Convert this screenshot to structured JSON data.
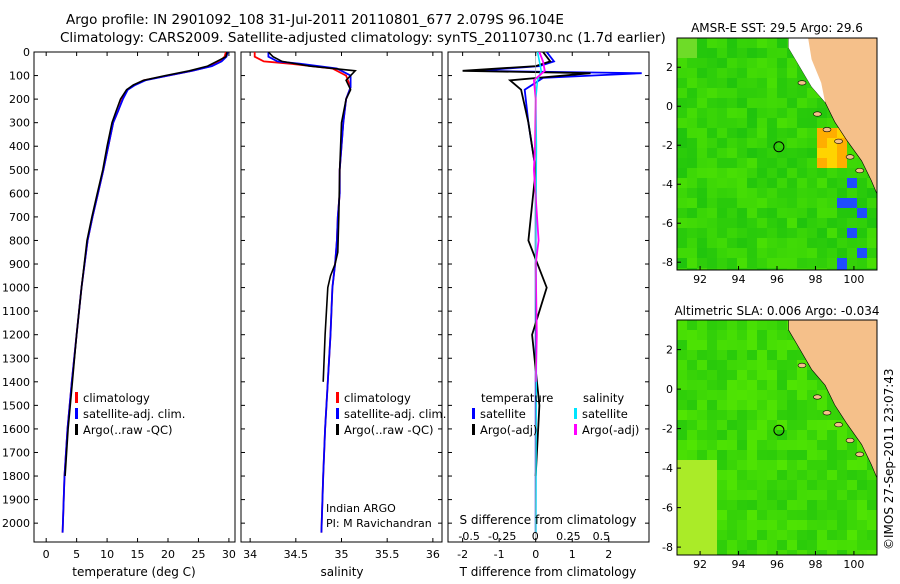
{
  "header": {
    "line1": "Argo profile: IN 2901092_108 31-Jul-2011 20110801_677 2.079S 96.104E",
    "line2": "Climatology: CARS2009. Satellite-adjusted climatology: synTS_20110730.nc (1.7d earlier)"
  },
  "side_stamp": "©IMOS 27-Sep-2011 23:07:43",
  "colors": {
    "climatology": "#ff0000",
    "satellite": "#0000ff",
    "argo": "#000000",
    "cyan": "#00e5ff",
    "magenta": "#ff00ff",
    "land": "#f5c08a"
  },
  "chart_data": [
    {
      "type": "line",
      "xlabel": "temperature (deg C)",
      "ylabel": "",
      "xlim": [
        -2,
        31
      ],
      "ylim": [
        2080,
        0
      ],
      "xticks": [
        0,
        5,
        10,
        15,
        20,
        25,
        30
      ],
      "yticks": [
        0,
        100,
        200,
        300,
        400,
        500,
        600,
        700,
        800,
        900,
        1000,
        1100,
        1200,
        1300,
        1400,
        1500,
        1600,
        1700,
        1800,
        1900,
        2000
      ],
      "legend": [
        {
          "label": "climatology",
          "color": "#ff0000"
        },
        {
          "label": "satellite-adj. clim.",
          "color": "#0000ff"
        },
        {
          "label": "Argo(..raw -QC)",
          "color": "#000000"
        }
      ],
      "series": [
        {
          "name": "climatology",
          "color": "#ff0000",
          "x": [
            29.5,
            29.3,
            28.5,
            27.0,
            24.0,
            20.0,
            16.0,
            14.5,
            13.3,
            12.5,
            11.8,
            11.0,
            10.2,
            9.4,
            8.5,
            7.6,
            6.8,
            5.8,
            5.0,
            4.2,
            3.5,
            3.0,
            2.7
          ],
          "y": [
            0,
            20,
            40,
            60,
            80,
            100,
            120,
            140,
            160,
            200,
            250,
            300,
            400,
            500,
            600,
            700,
            800,
            1000,
            1200,
            1400,
            1600,
            1800,
            2040
          ]
        },
        {
          "name": "satellite-adj. clim.",
          "color": "#0000ff",
          "x": [
            29.8,
            29.6,
            28.8,
            27.2,
            24.0,
            20.0,
            16.3,
            14.6,
            13.4,
            12.6,
            11.8,
            11.0,
            10.2,
            9.4,
            8.5,
            7.6,
            6.8,
            5.8,
            5.0,
            4.2,
            3.5,
            3.0,
            2.7
          ],
          "y": [
            0,
            20,
            40,
            60,
            80,
            100,
            120,
            140,
            160,
            200,
            250,
            300,
            400,
            500,
            600,
            700,
            800,
            1000,
            1200,
            1400,
            1600,
            1800,
            2040
          ]
        },
        {
          "name": "Argo(..raw -QC)",
          "color": "#000000",
          "x": [
            29.7,
            29.5,
            28.0,
            26.5,
            23.5,
            19.5,
            16.0,
            14.3,
            13.2,
            12.2,
            11.5,
            10.8,
            10.0,
            9.3,
            8.4,
            7.5,
            6.7,
            5.8,
            5.0,
            4.3,
            3.6,
            3.1
          ],
          "y": [
            0,
            20,
            40,
            60,
            80,
            100,
            120,
            140,
            160,
            200,
            250,
            300,
            400,
            500,
            600,
            700,
            800,
            1000,
            1200,
            1400,
            1600,
            1800
          ]
        }
      ]
    },
    {
      "type": "line",
      "xlabel": "salinity",
      "ylabel": "",
      "xlim": [
        33.9,
        36.1
      ],
      "ylim": [
        2080,
        0
      ],
      "xticks": [
        34,
        34.5,
        35,
        35.5,
        36
      ],
      "legend": [
        {
          "label": "climatology",
          "color": "#ff0000"
        },
        {
          "label": "satellite-adj. clim.",
          "color": "#0000ff"
        },
        {
          "label": "Argo(..raw -QC)",
          "color": "#000000"
        }
      ],
      "annotations": [
        "Indian ARGO",
        "PI: M Ravichandran"
      ],
      "series": [
        {
          "name": "climatology",
          "color": "#ff0000",
          "x": [
            34.05,
            34.05,
            34.15,
            34.45,
            34.9,
            35.05,
            35.1,
            35.05,
            35.02,
            35.0,
            34.98,
            34.98,
            34.96,
            34.95,
            34.93,
            34.9,
            34.88,
            34.85,
            34.82,
            34.8,
            34.78
          ],
          "y": [
            0,
            20,
            40,
            50,
            70,
            100,
            150,
            200,
            300,
            400,
            500,
            600,
            700,
            800,
            900,
            1000,
            1200,
            1400,
            1600,
            1800,
            2040
          ]
        },
        {
          "name": "satellite-adj. clim.",
          "color": "#0000ff",
          "x": [
            34.2,
            34.2,
            34.3,
            34.55,
            34.95,
            35.1,
            35.1,
            35.05,
            35.02,
            35.0,
            34.98,
            34.98,
            34.96,
            34.95,
            34.93,
            34.9,
            34.88,
            34.85,
            34.82,
            34.8,
            34.78
          ],
          "y": [
            0,
            20,
            40,
            50,
            70,
            100,
            150,
            200,
            300,
            400,
            500,
            600,
            700,
            800,
            900,
            1000,
            1200,
            1400,
            1600,
            1800,
            2040
          ]
        },
        {
          "name": "Argo(..raw -QC)",
          "color": "#000000",
          "x": [
            34.2,
            34.25,
            34.35,
            34.65,
            35.15,
            35.05,
            35.1,
            35.05,
            35.0,
            34.98,
            34.97,
            34.96,
            34.93,
            34.88,
            34.85,
            34.82,
            34.8
          ],
          "y": [
            0,
            20,
            40,
            60,
            80,
            120,
            160,
            200,
            300,
            500,
            700,
            850,
            900,
            950,
            1000,
            1200,
            1400
          ]
        }
      ]
    },
    {
      "type": "line",
      "xlabel": "T difference from climatology",
      "x2label": "S difference from climatology",
      "ylabel": "",
      "xlim": [
        -2.4,
        3.1
      ],
      "ylim": [
        2080,
        0
      ],
      "xticks": [
        -2,
        -1,
        0,
        1,
        2
      ],
      "x2ticks": [
        -0.5,
        -0.25,
        0,
        0.25,
        0.5
      ],
      "x2lim": [
        -0.66,
        0.86
      ],
      "legend": [
        {
          "header": "temperature",
          "entries": [
            {
              "label": "satellite",
              "color": "#0000ff"
            },
            {
              "label": "Argo(-adj)",
              "color": "#000000"
            }
          ]
        },
        {
          "header": "salinity",
          "entries": [
            {
              "label": "satellite",
              "color": "#00e5ff"
            },
            {
              "label": "Argo(-adj)",
              "color": "#ff00ff"
            }
          ]
        }
      ],
      "series": [
        {
          "name": "temperature satellite",
          "color": "#0000ff",
          "x": [
            0.3,
            0.5,
            0.1,
            -1.6,
            2.9,
            0.2,
            -0.3,
            -0.2,
            0.0,
            0.0,
            0.0,
            0.0,
            0.0,
            0.0
          ],
          "y": [
            0,
            40,
            60,
            80,
            90,
            110,
            160,
            300,
            500,
            800,
            1000,
            1400,
            1800,
            2040
          ]
        },
        {
          "name": "temperature Argo(-adj)",
          "color": "#000000",
          "x": [
            0.2,
            0.4,
            0.0,
            -2.0,
            1.5,
            -0.7,
            -0.4,
            -0.2,
            0.0,
            -0.2,
            0.3,
            -0.1,
            0.1,
            0.0
          ],
          "y": [
            0,
            40,
            60,
            80,
            90,
            120,
            160,
            300,
            500,
            800,
            1000,
            1200,
            1500,
            1800
          ]
        },
        {
          "name": "salinity satellite",
          "color": "#00e5ff",
          "x": [
            0.05,
            0.1,
            0.15,
            0.05,
            0.0,
            0.02,
            0.0,
            0.02,
            0.0
          ],
          "y": [
            0,
            40,
            80,
            120,
            200,
            400,
            800,
            1200,
            2040
          ]
        },
        {
          "name": "salinity Argo(-adj)",
          "color": "#ff00ff",
          "x": [
            0.1,
            0.2,
            0.25,
            -0.05,
            0.0,
            -0.02,
            -0.05,
            0.08,
            0.0,
            0.03,
            0.0
          ],
          "y": [
            0,
            40,
            80,
            120,
            200,
            400,
            500,
            800,
            900,
            1200,
            1400
          ]
        }
      ]
    },
    {
      "type": "heatmap",
      "title": "AMSR-E SST: 29.5 Argo: 29.6",
      "xticks": [
        92,
        94,
        96,
        98,
        100
      ],
      "yticks": [
        2,
        0,
        -2,
        -4,
        -6,
        -8
      ],
      "xlim": [
        90.8,
        101.2
      ],
      "ylim": [
        -8.4,
        3.5
      ],
      "profile_location": {
        "lon": 96.1,
        "lat": -2.08
      }
    },
    {
      "type": "heatmap",
      "title": "Altimetric SLA: 0.006 Argo: -0.034",
      "xticks": [
        92,
        94,
        96,
        98,
        100
      ],
      "yticks": [
        2,
        0,
        -2,
        -4,
        -6,
        -8
      ],
      "xlim": [
        90.8,
        101.2
      ],
      "ylim": [
        -8.4,
        3.5
      ],
      "profile_location": {
        "lon": 96.1,
        "lat": -2.08
      }
    }
  ]
}
